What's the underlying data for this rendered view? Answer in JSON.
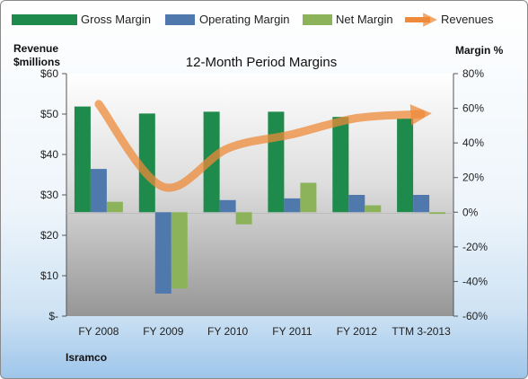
{
  "chart_data": {
    "type": "bar",
    "title": "12-Month Period Margins",
    "left_axis_label": [
      "Revenue",
      "$millions"
    ],
    "right_axis_label": "Margin %",
    "company": "Isramco",
    "categories": [
      "FY 2008",
      "FY 2009",
      "FY 2010",
      "FY 2011",
      "FY 2012",
      "TTM 3-2013"
    ],
    "left_ticks": [
      "$-",
      "$10",
      "$20",
      "$30",
      "$40",
      "$50",
      "$60"
    ],
    "left_range": [
      0,
      60
    ],
    "right_ticks": [
      "-60%",
      "-40%",
      "-20%",
      "0%",
      "20%",
      "40%",
      "60%",
      "80%"
    ],
    "right_range": [
      -60,
      80
    ],
    "grid": false,
    "legend_position": "top",
    "series": [
      {
        "name": "Gross Margin",
        "kind": "bar",
        "axis": "right",
        "color": "#1e8a4c",
        "values": [
          61,
          57,
          58,
          58,
          55,
          54
        ]
      },
      {
        "name": "Operating Margin",
        "kind": "bar",
        "axis": "right",
        "color": "#4f79ad",
        "values": [
          25,
          -47,
          7,
          8,
          10,
          10
        ]
      },
      {
        "name": "Net Margin",
        "kind": "bar",
        "axis": "right",
        "color": "#8db35a",
        "values": [
          6,
          -44,
          -7,
          17,
          4,
          -1
        ]
      },
      {
        "name": "Revenues",
        "kind": "line",
        "axis": "left",
        "color": "#ee8a3a",
        "values": [
          52.5,
          32,
          41.5,
          45,
          49,
          50
        ]
      }
    ]
  }
}
